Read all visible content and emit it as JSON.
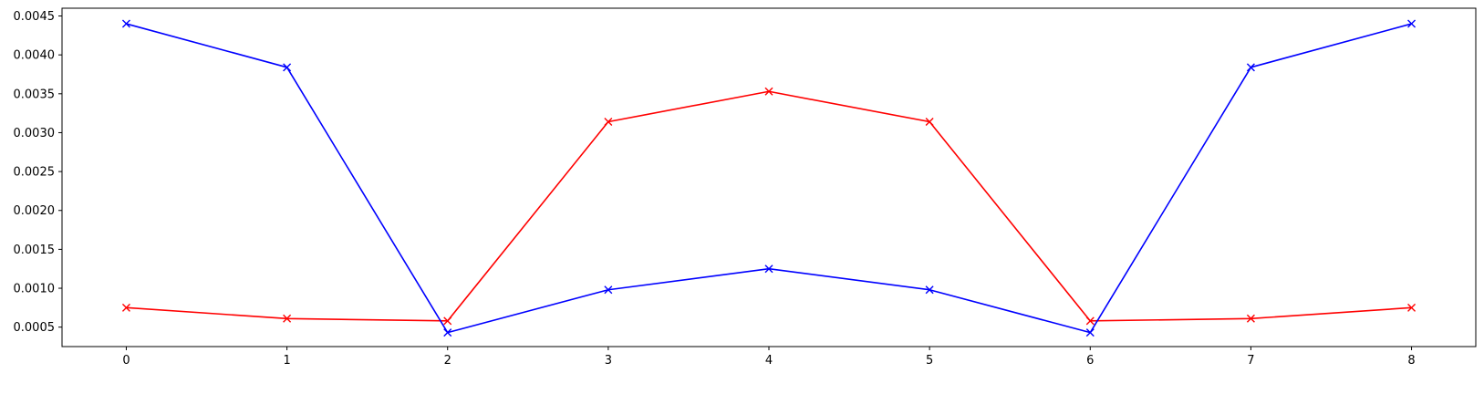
{
  "chart_data": {
    "type": "line",
    "title": "",
    "xlabel": "",
    "ylabel": "",
    "x": [
      0,
      1,
      2,
      3,
      4,
      5,
      6,
      7,
      8
    ],
    "xlim": [
      -0.4,
      8.4
    ],
    "ylim": [
      0.00025,
      0.0046
    ],
    "x_ticks": [
      0,
      1,
      2,
      3,
      4,
      5,
      6,
      7,
      8
    ],
    "x_tick_labels": [
      "0",
      "1",
      "2",
      "3",
      "4",
      "5",
      "6",
      "7",
      "8"
    ],
    "y_ticks": [
      0.0005,
      0.001,
      0.0015,
      0.002,
      0.0025,
      0.003,
      0.0035,
      0.004,
      0.0045
    ],
    "y_tick_labels": [
      "0.0005",
      "0.0010",
      "0.0015",
      "0.0020",
      "0.0025",
      "0.0030",
      "0.0035",
      "0.0040",
      "0.0045"
    ],
    "grid": false,
    "legend": "none",
    "marker": "x",
    "series": [
      {
        "color": "#ff0000",
        "values": [
          0.00075,
          0.00061,
          0.00058,
          0.00314,
          0.00353,
          0.00314,
          0.00058,
          0.00061,
          0.00075
        ]
      },
      {
        "color": "#0000ff",
        "values": [
          0.0044,
          0.00384,
          0.00043,
          0.00098,
          0.00125,
          0.00098,
          0.00043,
          0.00384,
          0.0044
        ]
      }
    ]
  }
}
